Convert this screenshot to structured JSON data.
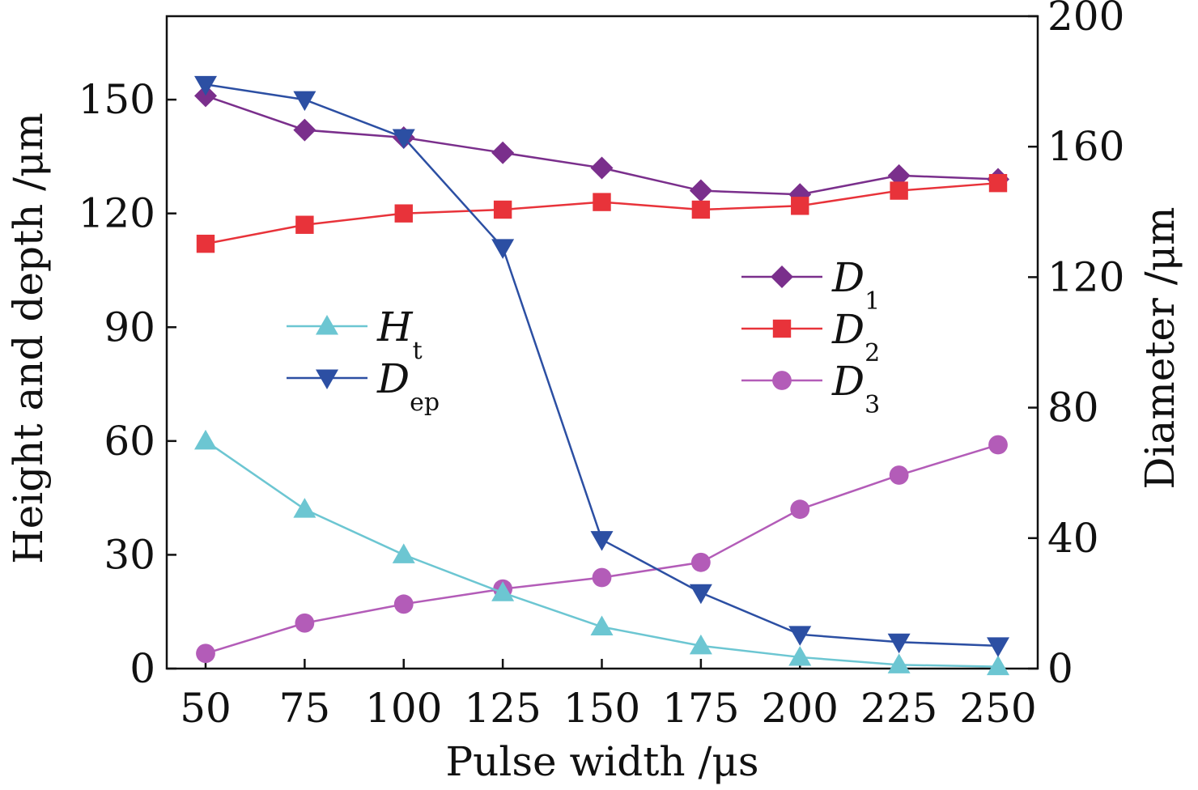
{
  "chart_data": {
    "type": "line",
    "title": "",
    "xlabel": "Pulse width /μs",
    "ylabel_left": "Height and depth /μm",
    "ylabel_right": "Diameter /μm",
    "x": [
      50,
      75,
      100,
      125,
      150,
      175,
      200,
      225,
      250
    ],
    "x_ticks": [
      "50",
      "75",
      "100",
      "125",
      "150",
      "175",
      "200",
      "225",
      "250"
    ],
    "ylim_left": [
      0,
      172
    ],
    "ylim_right": [
      0,
      200
    ],
    "yticks_left": [
      "0",
      "30",
      "60",
      "90",
      "120",
      "150"
    ],
    "yticks_right": [
      "0",
      "40",
      "80",
      "120",
      "160",
      "200"
    ],
    "grid": false,
    "series": [
      {
        "name": "D1",
        "main": "D",
        "sub": "1",
        "axis": "left",
        "marker": "diamond",
        "color": "#7a2f8c",
        "values": [
          151,
          142,
          140,
          136,
          132,
          126,
          125,
          130,
          129
        ]
      },
      {
        "name": "D2",
        "main": "D",
        "sub": "2",
        "axis": "left",
        "marker": "square",
        "color": "#e8333a",
        "values": [
          112,
          117,
          120,
          121,
          123,
          121,
          122,
          126,
          128
        ]
      },
      {
        "name": "D3",
        "main": "D",
        "sub": "3",
        "axis": "left",
        "marker": "circle",
        "color": "#b35cb8",
        "values": [
          4,
          12,
          17,
          21,
          24,
          28,
          42,
          51,
          59
        ]
      },
      {
        "name": "Ht",
        "main": "H",
        "sub": "t",
        "axis": "left",
        "marker": "triangle-up",
        "color": "#6cc6d2",
        "values": [
          60,
          42,
          30,
          20,
          11,
          6,
          3,
          1,
          0.5
        ]
      },
      {
        "name": "Dep",
        "main": "D",
        "sub": "ep",
        "axis": "left",
        "marker": "triangle-down",
        "color": "#2c4fa3",
        "values": [
          154,
          150,
          140,
          111,
          34,
          20,
          9,
          7,
          6
        ]
      }
    ],
    "legends": [
      {
        "placement": "center-left",
        "items": [
          "Ht",
          "Dep"
        ]
      },
      {
        "placement": "center-right",
        "items": [
          "D1",
          "D2",
          "D3"
        ]
      }
    ]
  }
}
